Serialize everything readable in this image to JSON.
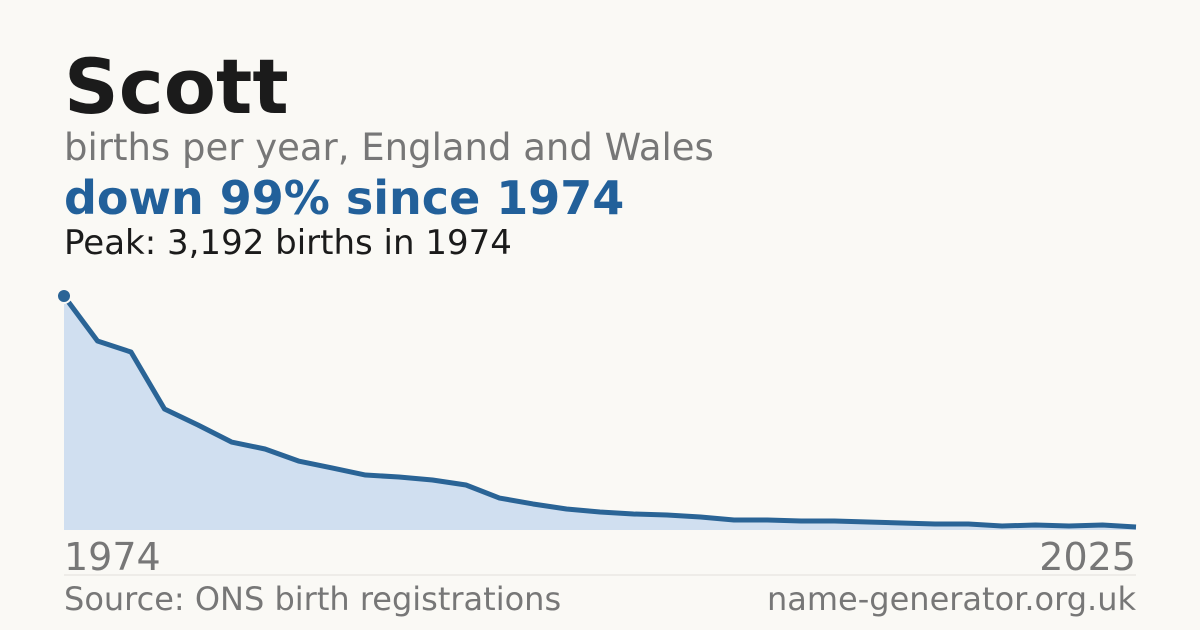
{
  "chart_data": {
    "type": "area",
    "title": "Scott",
    "subtitle": "births per year, England and Wales",
    "headline": "down 99% since 1974",
    "annotation": "Peak: 3,192 births in 1974",
    "source": "Source: ONS birth registrations",
    "site": "name-generator.org.uk",
    "categories": [
      "1974",
      null,
      null,
      null,
      null,
      null,
      null,
      null,
      null,
      null,
      null,
      null,
      null,
      null,
      null,
      null,
      null,
      null,
      null,
      null,
      null,
      null,
      null,
      null,
      null,
      null,
      null,
      null,
      null,
      null,
      null,
      null,
      "2025"
    ],
    "series": [
      {
        "name": "Scott",
        "color": "#2a6496",
        "values": [
          3192,
          2578,
          2428,
          1650,
          1432,
          1200,
          1105,
          941,
          846,
          750,
          723,
          682,
          614,
          436,
          355,
          286,
          246,
          218,
          205,
          177,
          136,
          136,
          123,
          123,
          109,
          95,
          82,
          82,
          55,
          68,
          55,
          68,
          41
        ]
      }
    ],
    "fill_color": "#d0dff0",
    "ylim": [
      0,
      3192
    ]
  }
}
